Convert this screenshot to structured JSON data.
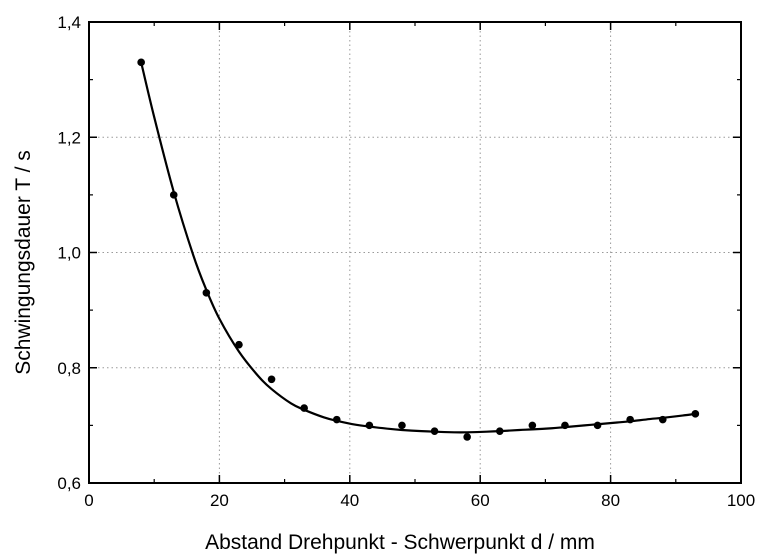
{
  "chart_data": {
    "type": "scatter",
    "xlabel": "Abstand  Drehpunkt - Schwerpunkt    d / mm",
    "ylabel": "Schwingungsdauer    T / s",
    "xlim": [
      0,
      100
    ],
    "ylim": [
      0.6,
      1.4
    ],
    "x_ticks": [
      0,
      20,
      40,
      60,
      80,
      100
    ],
    "y_ticks": [
      0.6,
      0.8,
      1.0,
      1.2,
      1.4
    ],
    "x_tick_labels": [
      "0",
      "20",
      "40",
      "60",
      "80",
      "100"
    ],
    "y_tick_labels": [
      "0,6",
      "0,8",
      "1,0",
      "1,2",
      "1,4"
    ],
    "grid": true,
    "series": [
      {
        "kind": "points",
        "color": "#000000",
        "x": [
          8,
          13,
          18,
          23,
          28,
          33,
          38,
          43,
          48,
          53,
          58,
          63,
          68,
          73,
          78,
          83,
          88,
          93
        ],
        "y": [
          1.33,
          1.1,
          0.93,
          0.84,
          0.78,
          0.73,
          0.71,
          0.7,
          0.7,
          0.69,
          0.68,
          0.69,
          0.7,
          0.7,
          0.7,
          0.71,
          0.71,
          0.72
        ]
      },
      {
        "kind": "fit-curve",
        "color": "#000000",
        "x": [
          8,
          10,
          13,
          16,
          18,
          20,
          23,
          26,
          28,
          31,
          33,
          36,
          38,
          41,
          43,
          46,
          48,
          51,
          53,
          56,
          58,
          61,
          63,
          66,
          68,
          71,
          73,
          76,
          78,
          81,
          83,
          86,
          88,
          91,
          93
        ],
        "y": [
          1.33,
          1.235,
          1.105,
          0.995,
          0.935,
          0.885,
          0.828,
          0.785,
          0.763,
          0.738,
          0.727,
          0.714,
          0.708,
          0.701,
          0.698,
          0.694,
          0.692,
          0.69,
          0.689,
          0.688,
          0.688,
          0.689,
          0.69,
          0.692,
          0.693,
          0.695,
          0.697,
          0.7,
          0.702,
          0.705,
          0.707,
          0.711,
          0.713,
          0.717,
          0.72
        ]
      }
    ]
  }
}
